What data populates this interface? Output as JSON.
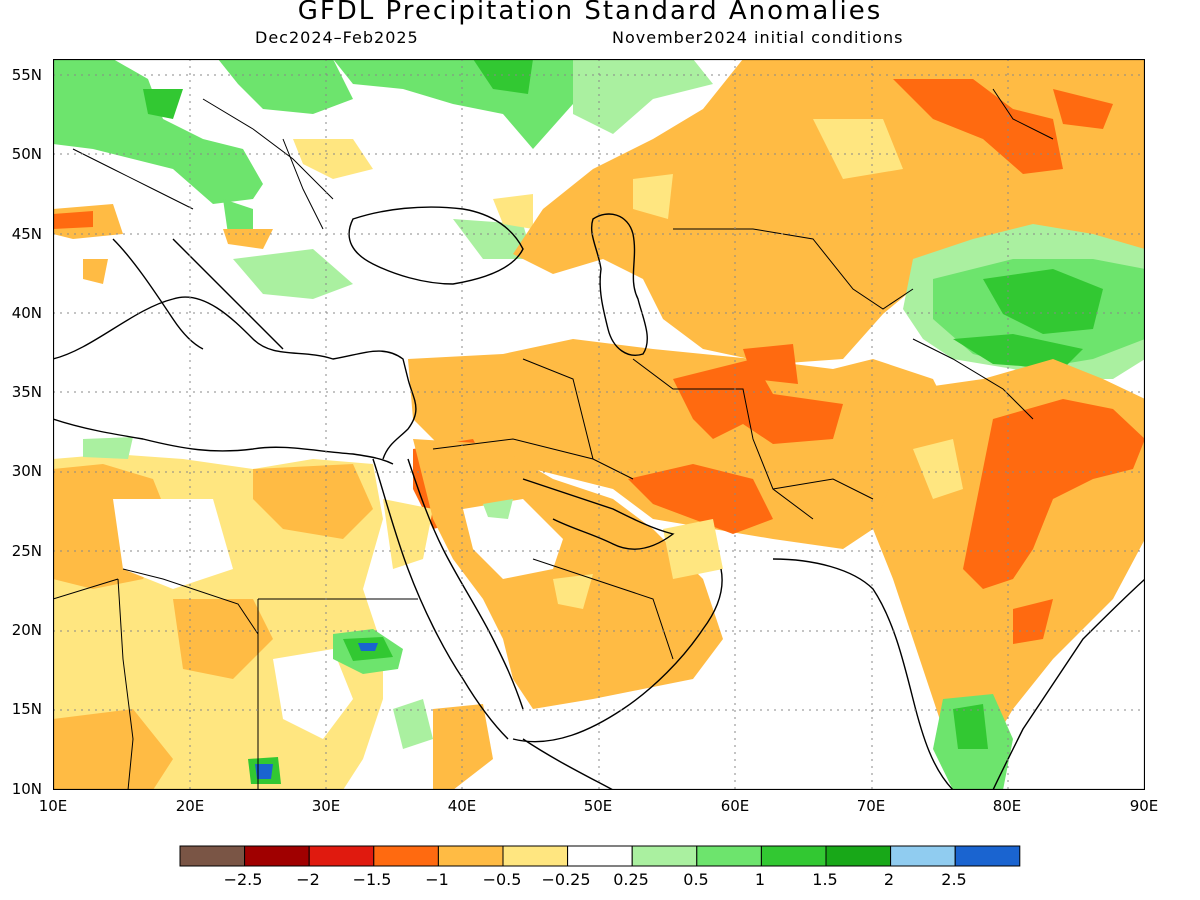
{
  "title": "GFDL Precipitation Standard Anomalies",
  "subtitle_left": "Dec2024–Feb2025",
  "subtitle_right": "November2024 initial conditions",
  "lat_labels": [
    "55N",
    "50N",
    "45N",
    "40N",
    "35N",
    "30N",
    "25N",
    "20N",
    "15N",
    "10N"
  ],
  "lon_labels": [
    "10E",
    "20E",
    "30E",
    "40E",
    "50E",
    "60E",
    "70E",
    "80E",
    "90E"
  ],
  "colorbar": {
    "colors": [
      "#7a5545",
      "#a00000",
      "#e01a0f",
      "#ff6a10",
      "#ffbb44",
      "#ffe680",
      "#ffffff",
      "#aaf0a0",
      "#6de46d",
      "#32c832",
      "#18a818",
      "#90ccf0",
      "#1a64d0"
    ],
    "labels": [
      "−2.5",
      "−2",
      "−1.5",
      "−1",
      "−0.5",
      "−0.25",
      "0.25",
      "0.5",
      "1",
      "1.5",
      "2",
      "2.5"
    ]
  }
}
